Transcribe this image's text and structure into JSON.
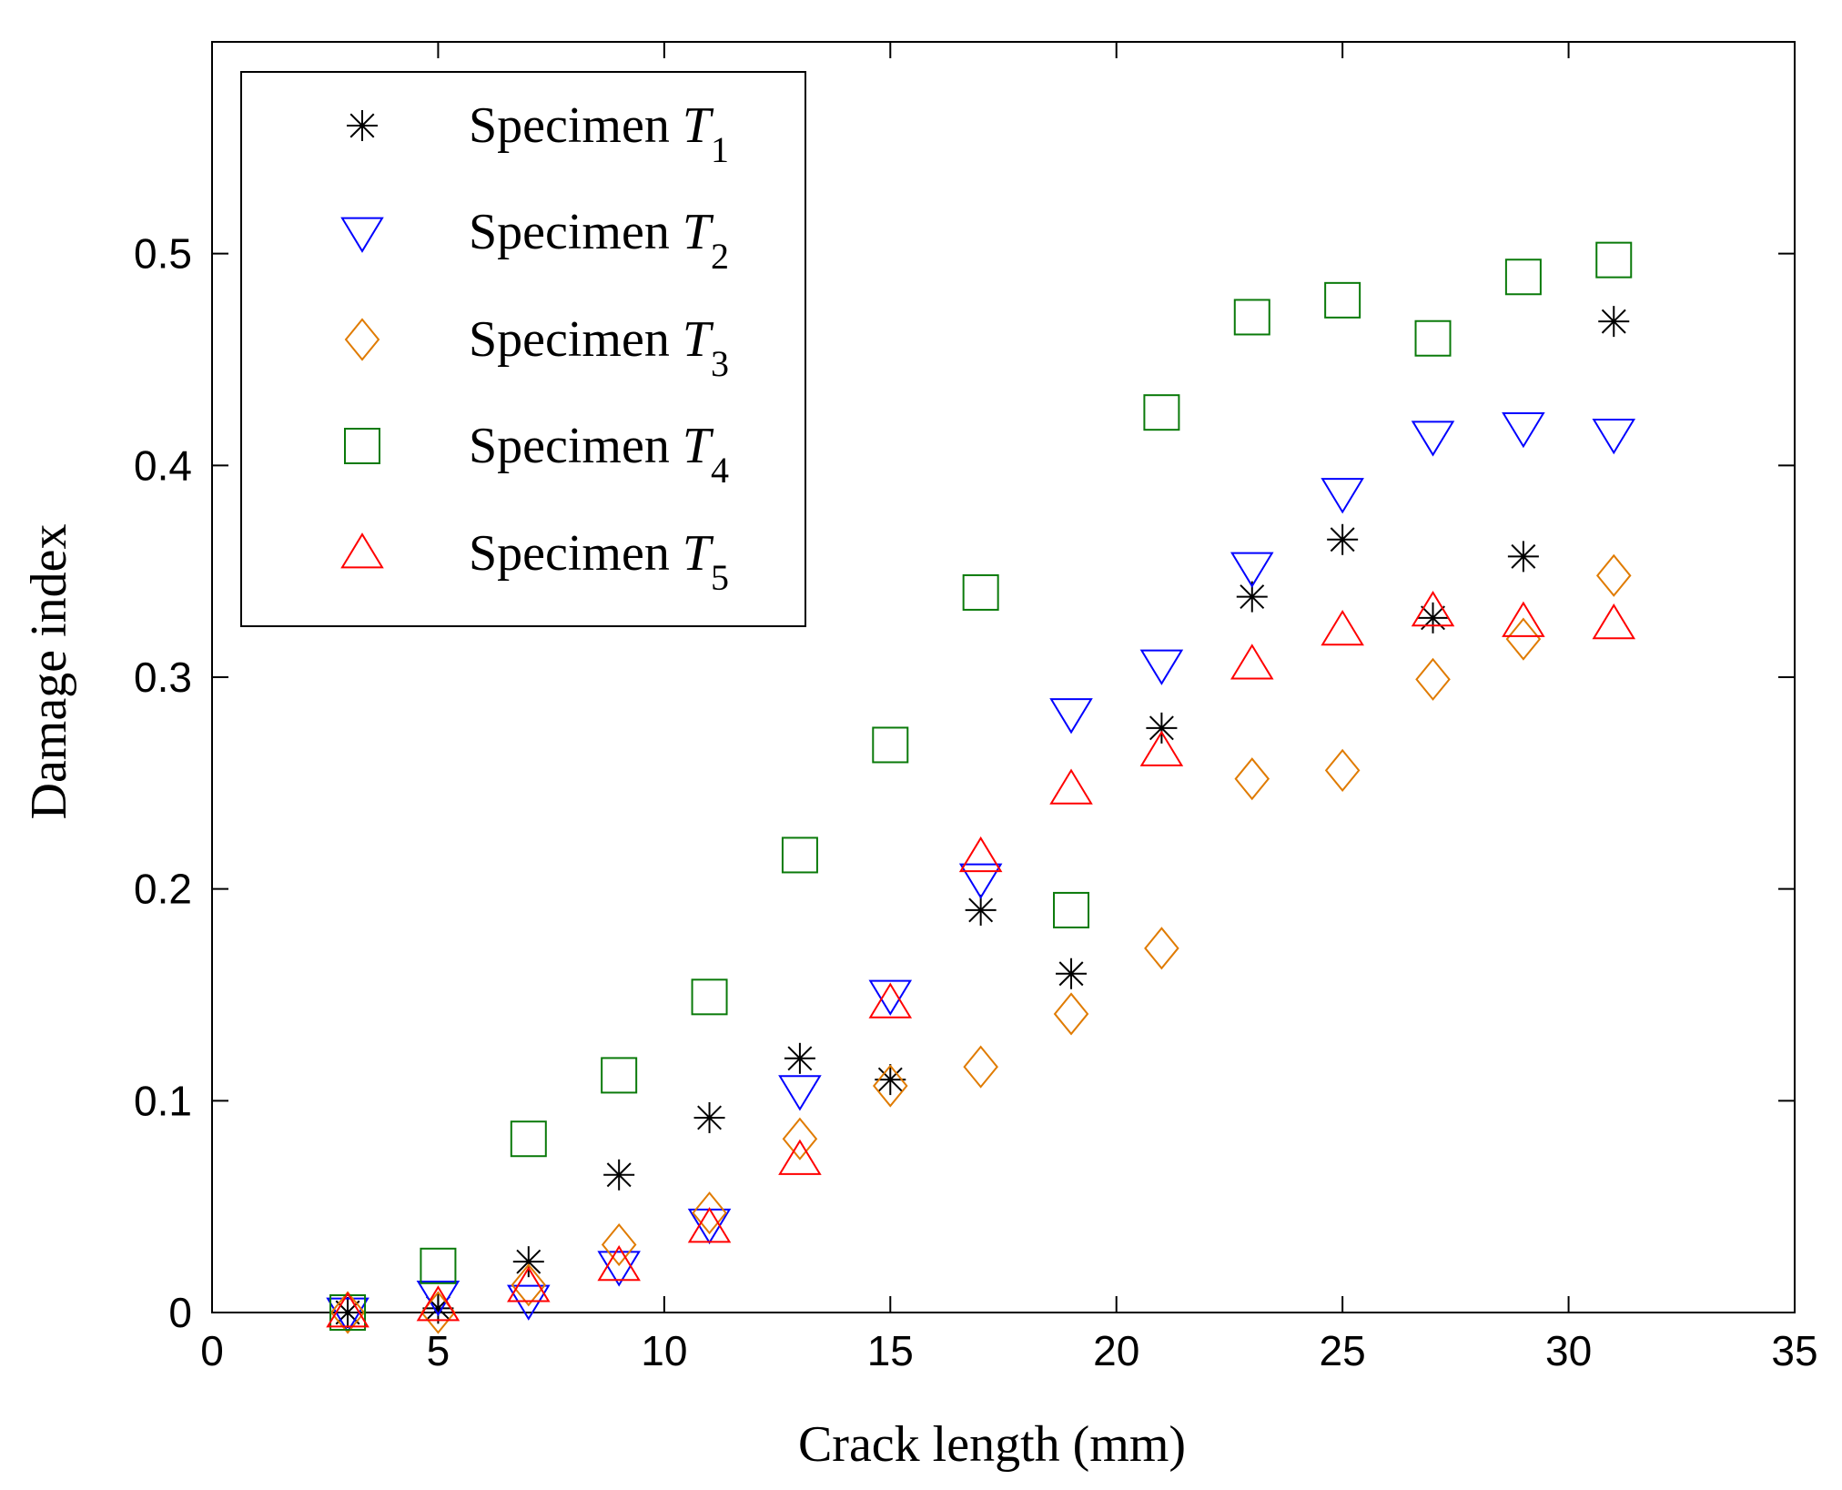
{
  "chart_data": {
    "type": "scatter",
    "title": "",
    "xlabel": "Crack length (mm)",
    "ylabel": "Damage index",
    "xlim": [
      0,
      35
    ],
    "ylim": [
      0,
      0.6
    ],
    "xticks": [
      0,
      5,
      10,
      15,
      20,
      25,
      30,
      35
    ],
    "xtick_labels": [
      "0",
      "5",
      "10",
      "15",
      "20",
      "25",
      "30",
      "35"
    ],
    "yticks": [
      0,
      0.1,
      0.2,
      0.3,
      0.4,
      0.5
    ],
    "ytick_labels": [
      "0",
      "0.1",
      "0.2",
      "0.3",
      "0.4",
      "0.5"
    ],
    "grid": false,
    "legend_position": "top-left",
    "x": [
      3,
      5,
      7,
      9,
      11,
      13,
      15,
      17,
      19,
      21,
      23,
      25,
      27,
      29,
      31
    ],
    "series": [
      {
        "name": "Specimen T1",
        "label_main": "Specimen",
        "label_var": "T",
        "label_sub": "1",
        "marker": "star",
        "color": "#000000",
        "values": [
          0.0,
          0.002,
          0.024,
          0.065,
          0.092,
          0.12,
          0.11,
          0.19,
          0.16,
          0.276,
          0.338,
          0.365,
          0.328,
          0.357,
          0.468
        ]
      },
      {
        "name": "Specimen T2",
        "label_main": "Specimen",
        "label_var": "T",
        "label_sub": "2",
        "marker": "triangle-down",
        "color": "#0000ff",
        "values": [
          0.0,
          0.008,
          0.006,
          0.022,
          0.042,
          0.105,
          0.15,
          0.205,
          0.283,
          0.306,
          0.352,
          0.387,
          0.414,
          0.418,
          0.415
        ]
      },
      {
        "name": "Specimen T3",
        "label_main": "Specimen",
        "label_var": "T",
        "label_sub": "3",
        "marker": "diamond",
        "color": "#e07b00",
        "values": [
          0.0,
          0.0,
          0.013,
          0.032,
          0.047,
          0.082,
          0.107,
          0.116,
          0.141,
          0.172,
          0.252,
          0.256,
          0.299,
          0.318,
          0.348
        ]
      },
      {
        "name": "Specimen T4",
        "label_main": "Specimen",
        "label_var": "T",
        "label_sub": "4",
        "marker": "square",
        "color": "#0a7a0a",
        "values": [
          0.0,
          0.022,
          0.082,
          0.112,
          0.149,
          0.216,
          0.268,
          0.34,
          0.19,
          0.425,
          0.47,
          0.478,
          0.46,
          0.489,
          0.497
        ]
      },
      {
        "name": "Specimen T5",
        "label_main": "Specimen",
        "label_var": "T",
        "label_sub": "5",
        "marker": "triangle-up",
        "color": "#ff0000",
        "values": [
          0.0,
          0.003,
          0.012,
          0.022,
          0.04,
          0.072,
          0.146,
          0.215,
          0.247,
          0.265,
          0.306,
          0.322,
          0.331,
          0.326,
          0.325
        ]
      }
    ]
  }
}
